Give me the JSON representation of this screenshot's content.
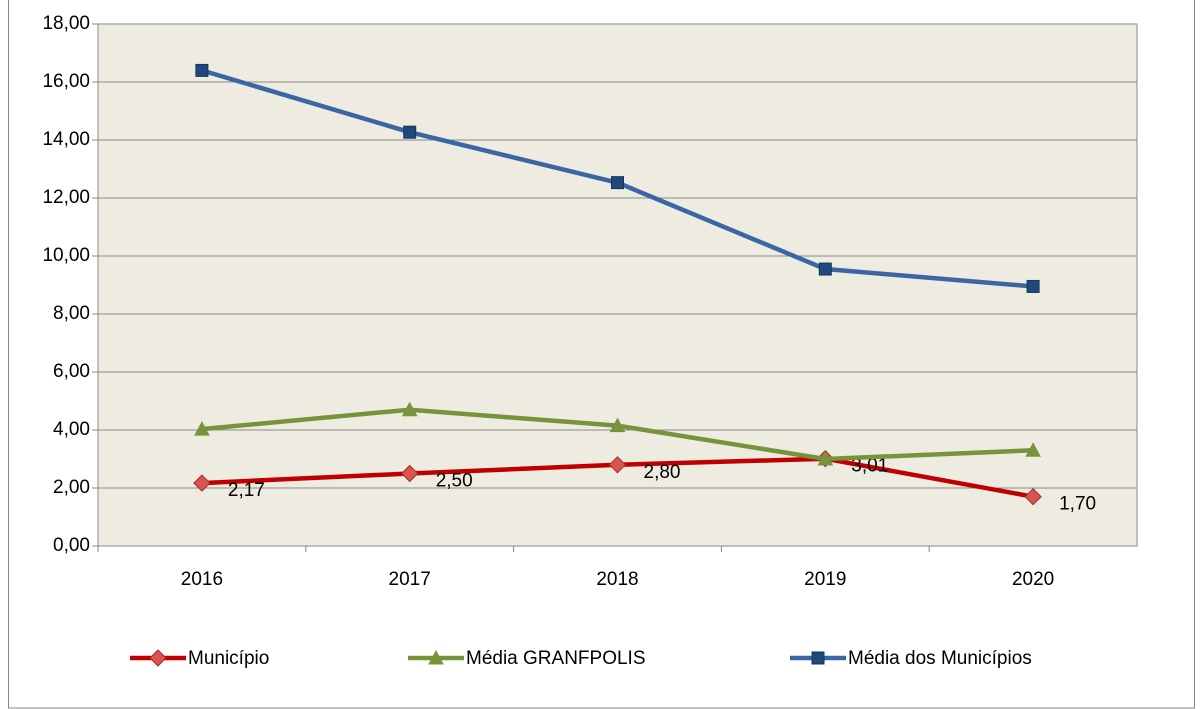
{
  "chart_data": {
    "type": "line",
    "categories": [
      "2016",
      "2017",
      "2018",
      "2019",
      "2020"
    ],
    "series": [
      {
        "name": "Município",
        "color": "#C00000",
        "marker_color": "#D9534F",
        "marker": "diamond",
        "values": [
          2.17,
          2.5,
          2.8,
          3.01,
          1.7
        ],
        "value_labels": [
          "2,17",
          "2,50",
          "2,80",
          "3,01",
          "1,70"
        ]
      },
      {
        "name": "Média GRANFPOLIS",
        "color": "#77933C",
        "marker_color": "#77933C",
        "marker": "triangle",
        "values": [
          4.03,
          4.7,
          4.15,
          3.0,
          3.3
        ]
      },
      {
        "name": "Média dos Municípios",
        "color": "#3A66A3",
        "marker_color": "#1F497D",
        "marker": "square",
        "values": [
          16.4,
          14.27,
          12.53,
          9.55,
          8.95
        ]
      }
    ],
    "ylim": [
      0,
      18
    ],
    "yticks": [
      {
        "value": 0,
        "label": "0,00"
      },
      {
        "value": 2,
        "label": "2,00"
      },
      {
        "value": 4,
        "label": "4,00"
      },
      {
        "value": 6,
        "label": "6,00"
      },
      {
        "value": 8,
        "label": "8,00"
      },
      {
        "value": 10,
        "label": "10,00"
      },
      {
        "value": 12,
        "label": "12,00"
      },
      {
        "value": 14,
        "label": "14,00"
      },
      {
        "value": 16,
        "label": "16,00"
      },
      {
        "value": 18,
        "label": "18,00"
      }
    ],
    "grid": true,
    "legend": "bottom",
    "background": "#EEECE1"
  }
}
